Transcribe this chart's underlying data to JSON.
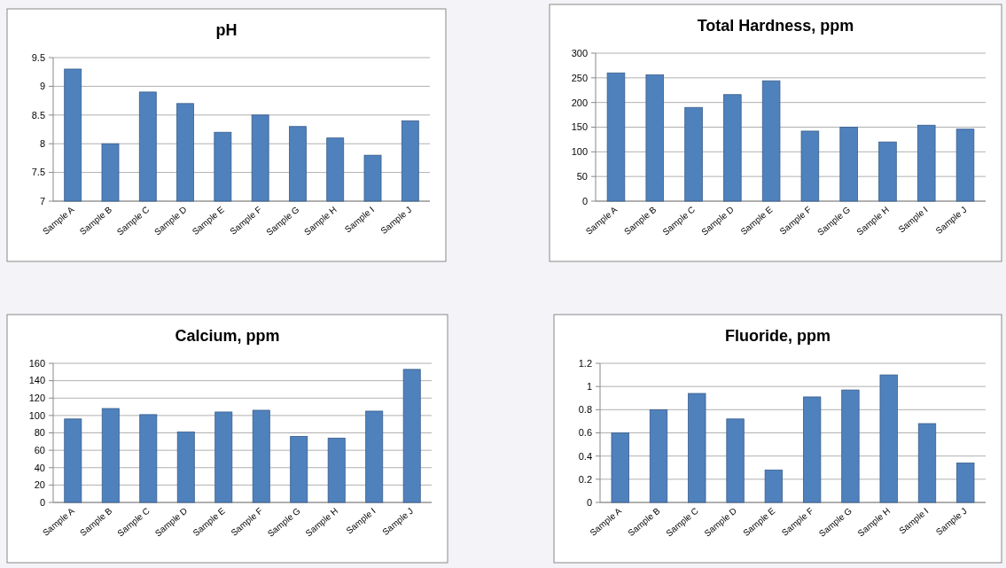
{
  "chart_data": [
    {
      "type": "bar",
      "title": "pH",
      "categories": [
        "Sample A",
        "Sample B",
        "Sample C",
        "Sample D",
        "Sample E",
        "Sample F",
        "Sample G",
        "Sample H",
        "Sample I",
        "Sample J"
      ],
      "values": [
        9.3,
        8.0,
        8.9,
        8.7,
        8.2,
        8.5,
        8.3,
        8.1,
        7.8,
        8.4
      ],
      "color": "#4f81bd",
      "ylim": [
        7,
        9.5
      ],
      "yticks": [
        7,
        7.5,
        8,
        8.5,
        9,
        9.5
      ],
      "grid": "y"
    },
    {
      "type": "bar",
      "title": "Total Hardness, ppm",
      "categories": [
        "Sample A",
        "Sample B",
        "Sample C",
        "Sample D",
        "Sample E",
        "Sample F",
        "Sample G",
        "Sample H",
        "Sample I",
        "Sample J"
      ],
      "values": [
        260,
        256,
        190,
        216,
        244,
        142,
        150,
        120,
        154,
        146
      ],
      "color": "#4f81bd",
      "ylim": [
        0,
        300
      ],
      "yticks": [
        0,
        50,
        100,
        150,
        200,
        250,
        300
      ],
      "grid": "y"
    },
    {
      "type": "bar",
      "title": "Calcium, ppm",
      "categories": [
        "Sample A",
        "Sample B",
        "Sample C",
        "Sample D",
        "Sample E",
        "Sample F",
        "Sample G",
        "Sample H",
        "Sample I",
        "Sample J"
      ],
      "values": [
        96,
        108,
        101,
        81,
        104,
        106,
        76,
        74,
        105,
        153
      ],
      "color": "#4f81bd",
      "ylim": [
        0,
        160
      ],
      "yticks": [
        0,
        20,
        40,
        60,
        80,
        100,
        120,
        140,
        160
      ],
      "grid": "y"
    },
    {
      "type": "bar",
      "title": "Fluoride, ppm",
      "categories": [
        "Sample A",
        "Sample B",
        "Sample C",
        "Sample D",
        "Sample E",
        "Sample F",
        "Sample G",
        "Sample H",
        "Sample I",
        "Sample J"
      ],
      "values": [
        0.6,
        0.8,
        0.94,
        0.72,
        0.28,
        0.91,
        0.97,
        1.1,
        0.68,
        0.34
      ],
      "color": "#4f81bd",
      "ylim": [
        0,
        1.2
      ],
      "yticks": [
        0,
        0.2,
        0.4,
        0.6,
        0.8,
        1,
        1.2
      ],
      "grid": "y"
    }
  ]
}
